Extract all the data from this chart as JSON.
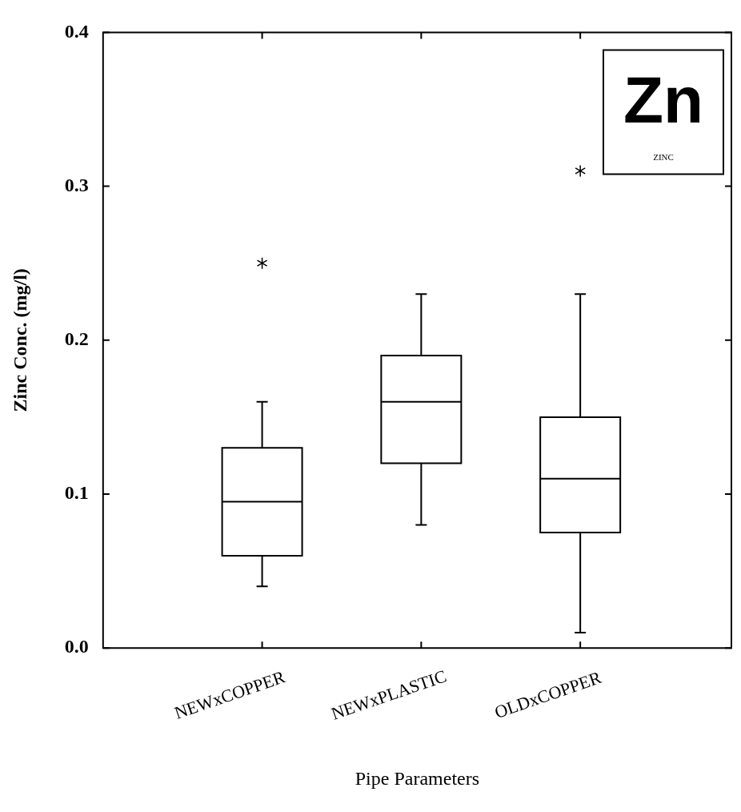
{
  "chart_data": {
    "type": "box",
    "xlabel": "Pipe Parameters",
    "ylabel": "Zinc Conc. (mg/l)",
    "categories": [
      "NEWxCOPPER",
      "NEWxPLASTIC",
      "OLDxCOPPER"
    ],
    "boxes": [
      {
        "low": 0.04,
        "q1": 0.06,
        "median": 0.095,
        "q3": 0.13,
        "high": 0.16,
        "outliers": [
          0.25
        ]
      },
      {
        "low": 0.08,
        "q1": 0.12,
        "median": 0.16,
        "q3": 0.19,
        "high": 0.23
      },
      {
        "low": 0.01,
        "q1": 0.075,
        "median": 0.11,
        "q3": 0.15,
        "high": 0.23,
        "outliers": [
          0.31
        ]
      }
    ],
    "ylim": [
      0,
      0.4
    ],
    "yticks": [
      {
        "value": 0,
        "label": "0.0"
      },
      {
        "value": 0.1,
        "label": "0.1"
      },
      {
        "value": 0.2,
        "label": "0.2"
      },
      {
        "value": 0.3,
        "label": "0.3"
      },
      {
        "value": 0.4,
        "label": "0.4"
      }
    ],
    "grid": false,
    "marker": "star",
    "annotations": [
      "Zn",
      "ZINC"
    ]
  }
}
